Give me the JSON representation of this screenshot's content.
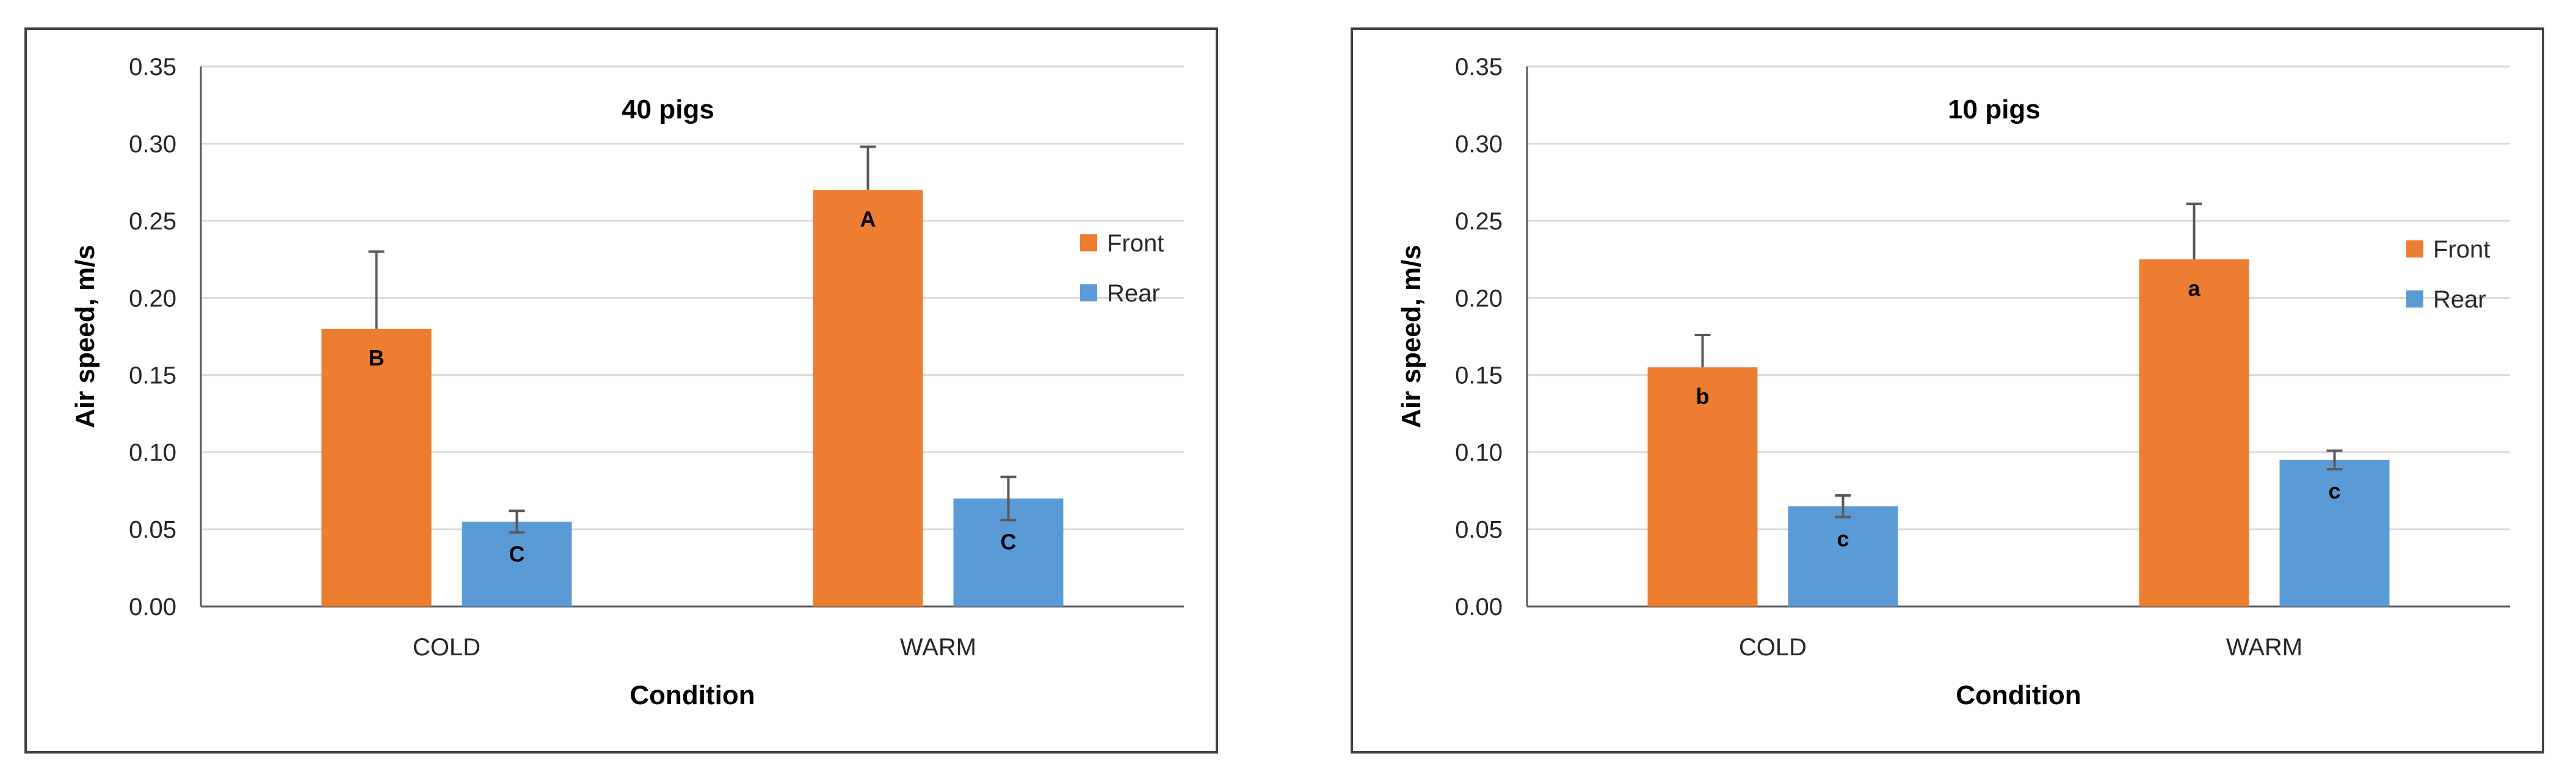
{
  "chart_data": [
    {
      "type": "bar",
      "title": "40 pigs",
      "xlabel": "Condition",
      "ylabel": "Air speed, m/s",
      "ylim": [
        0,
        0.35
      ],
      "yticks": [
        "0.00",
        "0.05",
        "0.10",
        "0.15",
        "0.20",
        "0.25",
        "0.30",
        "0.35"
      ],
      "categories": [
        "COLD",
        "WARM"
      ],
      "legend_position": "right",
      "grid": true,
      "series": [
        {
          "name": "Front",
          "color": "#ED7D31",
          "values": [
            0.18,
            0.27
          ],
          "errors": [
            0.05,
            0.028
          ],
          "labels": [
            "B",
            "A"
          ]
        },
        {
          "name": "Rear",
          "color": "#5B9BD5",
          "values": [
            0.055,
            0.07
          ],
          "errors": [
            0.007,
            0.014
          ],
          "labels": [
            "C",
            "C"
          ]
        }
      ]
    },
    {
      "type": "bar",
      "title": "10 pigs",
      "xlabel": "Condition",
      "ylabel": "Air speed, m/s",
      "ylim": [
        0,
        0.35
      ],
      "yticks": [
        "0.00",
        "0.05",
        "0.10",
        "0.15",
        "0.20",
        "0.25",
        "0.30",
        "0.35"
      ],
      "categories": [
        "COLD",
        "WARM"
      ],
      "legend_position": "right",
      "grid": true,
      "series": [
        {
          "name": "Front",
          "color": "#ED7D31",
          "values": [
            0.155,
            0.225
          ],
          "errors": [
            0.021,
            0.036
          ],
          "labels": [
            "b",
            "a"
          ]
        },
        {
          "name": "Rear",
          "color": "#5B9BD5",
          "values": [
            0.065,
            0.095
          ],
          "errors": [
            0.007,
            0.006
          ],
          "labels": [
            "c",
            "c"
          ]
        }
      ]
    }
  ]
}
